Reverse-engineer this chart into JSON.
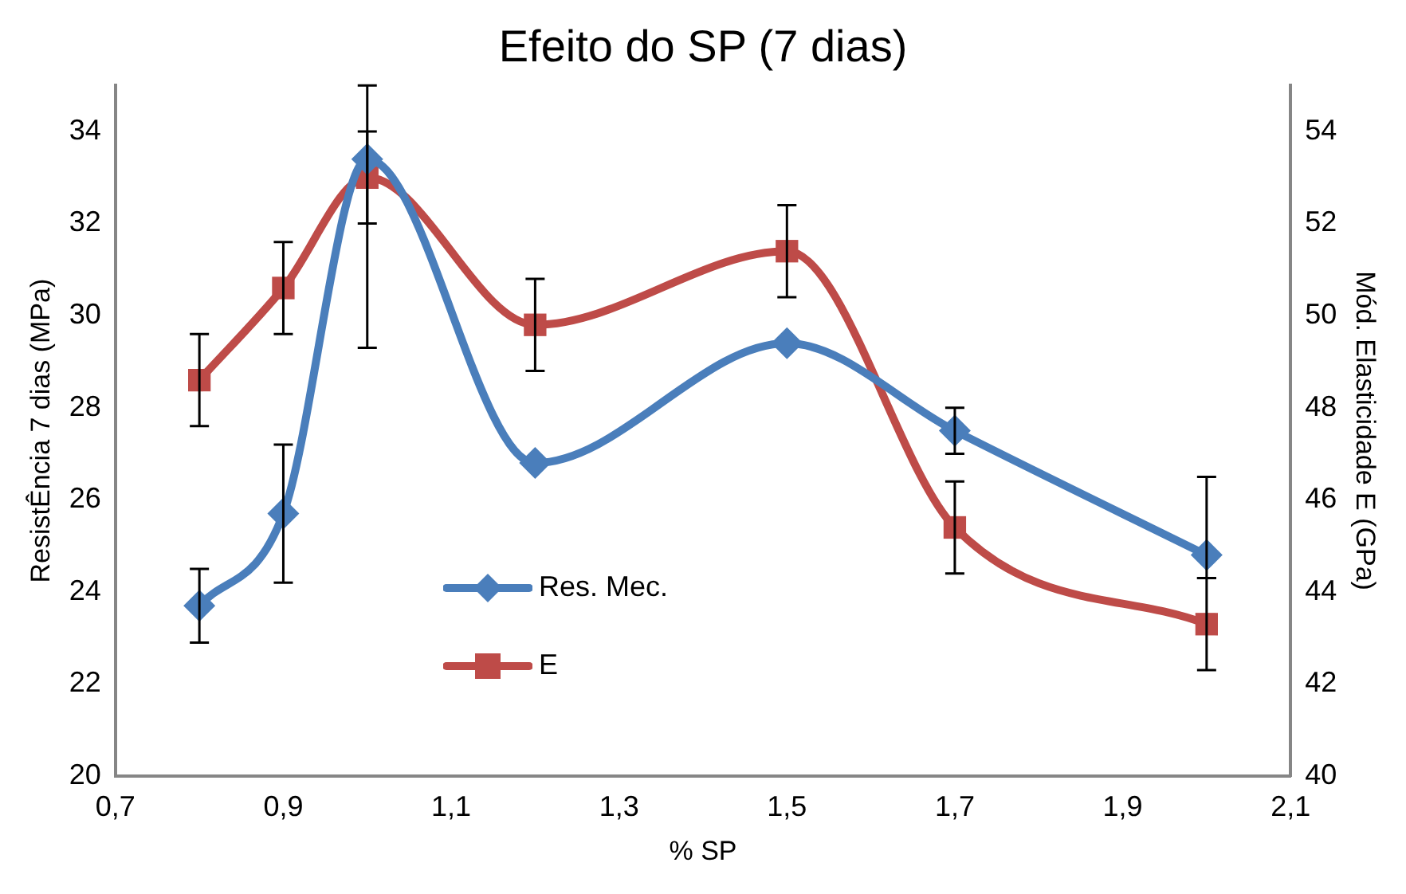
{
  "chart_data": {
    "type": "line",
    "title": "Efeito do SP (7 dias)",
    "xlabel": "% SP",
    "ylabel": "ResistÊncia 7 dias (MPa)",
    "y2label": "Mód. Elasticidade E (GPa)",
    "x": [
      0.8,
      0.9,
      1.0,
      1.2,
      1.5,
      1.7,
      2.0
    ],
    "series": [
      {
        "name": "Res. Mec.",
        "color": "#4a7ebb",
        "marker": "diamond",
        "values": [
          23.7,
          25.7,
          33.4,
          26.8,
          29.4,
          27.5,
          24.8
        ],
        "errors": [
          0.8,
          1.5,
          [
            29.3,
            35.0
          ],
          null,
          null,
          0.5,
          [
            24.3,
            26.5
          ]
        ]
      },
      {
        "name": "E",
        "color": "#be4b48",
        "marker": "square",
        "axis": "y2",
        "values": [
          48.6,
          50.6,
          53.0,
          49.8,
          51.4,
          45.4,
          43.3
        ],
        "errors": [
          1.0,
          1.0,
          1.0,
          1.0,
          1.0,
          1.0,
          1.0
        ]
      }
    ],
    "xlim": [
      0.7,
      2.1
    ],
    "xticks": [
      {
        "value": 0.7,
        "label": "0,7"
      },
      {
        "value": 0.9,
        "label": "0,9"
      },
      {
        "value": 1.1,
        "label": "1,1"
      },
      {
        "value": 1.3,
        "label": "1,3"
      },
      {
        "value": 1.5,
        "label": "1,5"
      },
      {
        "value": 1.7,
        "label": "1,7"
      },
      {
        "value": 1.9,
        "label": "1,9"
      },
      {
        "value": 2.1,
        "label": "2,1"
      }
    ],
    "ylim": [
      20,
      35
    ],
    "yticks": [
      20,
      22,
      24,
      26,
      28,
      30,
      32,
      34
    ],
    "y2lim": [
      40,
      55
    ],
    "y2ticks": [
      40,
      42,
      44,
      46,
      48,
      50,
      52,
      54
    ],
    "grid": false,
    "legend": "bottom left"
  }
}
